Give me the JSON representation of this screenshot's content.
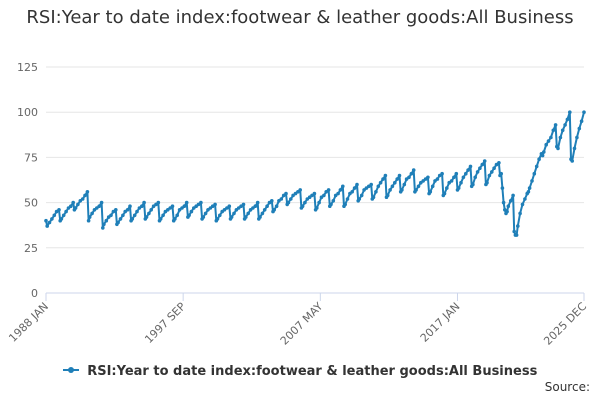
{
  "chart_data": {
    "type": "line",
    "title": "RSI:Year to date index:footwear & leather goods:All Business",
    "xlabel": "",
    "ylabel": "",
    "ylim": [
      0,
      125
    ],
    "y_ticks": [
      0,
      25,
      50,
      75,
      100,
      125
    ],
    "x_tick_labels": [
      {
        "label": "1988 JAN",
        "date": "1988-01"
      },
      {
        "label": "1997 SEP",
        "date": "1997-09"
      },
      {
        "label": "2007 MAY",
        "date": "2007-05"
      },
      {
        "label": "2017 JAN",
        "date": "2017-01"
      },
      {
        "label": "2025 DEC",
        "date": "2025-12"
      }
    ],
    "grid": true,
    "legend_position": "bottom",
    "series": [
      {
        "name": "RSI:Year to date index:footwear & leather goods:All Business",
        "color": "#1f7fb8",
        "points": [
          [
            "1988-01",
            40
          ],
          [
            "1988-02",
            37
          ],
          [
            "1988-04",
            39
          ],
          [
            "1988-06",
            41
          ],
          [
            "1988-08",
            43
          ],
          [
            "1988-10",
            45
          ],
          [
            "1988-12",
            46
          ],
          [
            "1989-01",
            40
          ],
          [
            "1989-02",
            41
          ],
          [
            "1989-04",
            43
          ],
          [
            "1989-06",
            45
          ],
          [
            "1989-08",
            47
          ],
          [
            "1989-10",
            48
          ],
          [
            "1989-12",
            50
          ],
          [
            "1990-01",
            46
          ],
          [
            "1990-02",
            47
          ],
          [
            "1990-04",
            49
          ],
          [
            "1990-06",
            51
          ],
          [
            "1990-08",
            52
          ],
          [
            "1990-10",
            54
          ],
          [
            "1990-12",
            56
          ],
          [
            "1991-01",
            40
          ],
          [
            "1991-02",
            42
          ],
          [
            "1991-04",
            44
          ],
          [
            "1991-06",
            46
          ],
          [
            "1991-08",
            47
          ],
          [
            "1991-10",
            48
          ],
          [
            "1991-12",
            50
          ],
          [
            "1992-01",
            36
          ],
          [
            "1992-02",
            38
          ],
          [
            "1992-04",
            40
          ],
          [
            "1992-06",
            42
          ],
          [
            "1992-08",
            43
          ],
          [
            "1992-10",
            45
          ],
          [
            "1992-12",
            46
          ],
          [
            "1993-01",
            38
          ],
          [
            "1993-02",
            39
          ],
          [
            "1993-04",
            41
          ],
          [
            "1993-06",
            43
          ],
          [
            "1993-08",
            45
          ],
          [
            "1993-10",
            46
          ],
          [
            "1993-12",
            48
          ],
          [
            "1994-01",
            40
          ],
          [
            "1994-02",
            41
          ],
          [
            "1994-04",
            43
          ],
          [
            "1994-06",
            45
          ],
          [
            "1994-08",
            47
          ],
          [
            "1994-10",
            48
          ],
          [
            "1994-12",
            50
          ],
          [
            "1995-01",
            41
          ],
          [
            "1995-02",
            42
          ],
          [
            "1995-04",
            44
          ],
          [
            "1995-06",
            46
          ],
          [
            "1995-08",
            48
          ],
          [
            "1995-10",
            49
          ],
          [
            "1995-12",
            50
          ],
          [
            "1996-01",
            40
          ],
          [
            "1996-02",
            41
          ],
          [
            "1996-04",
            43
          ],
          [
            "1996-06",
            45
          ],
          [
            "1996-08",
            46
          ],
          [
            "1996-10",
            47
          ],
          [
            "1996-12",
            48
          ],
          [
            "1997-01",
            40
          ],
          [
            "1997-02",
            41
          ],
          [
            "1997-04",
            43
          ],
          [
            "1997-06",
            46
          ],
          [
            "1997-08",
            47
          ],
          [
            "1997-10",
            48
          ],
          [
            "1997-12",
            50
          ],
          [
            "1998-01",
            42
          ],
          [
            "1998-02",
            43
          ],
          [
            "1998-04",
            45
          ],
          [
            "1998-06",
            47
          ],
          [
            "1998-08",
            48
          ],
          [
            "1998-10",
            49
          ],
          [
            "1998-12",
            50
          ],
          [
            "1999-01",
            41
          ],
          [
            "1999-02",
            42
          ],
          [
            "1999-04",
            44
          ],
          [
            "1999-06",
            46
          ],
          [
            "1999-08",
            47
          ],
          [
            "1999-10",
            48
          ],
          [
            "1999-12",
            49
          ],
          [
            "2000-01",
            40
          ],
          [
            "2000-02",
            41
          ],
          [
            "2000-04",
            43
          ],
          [
            "2000-06",
            45
          ],
          [
            "2000-08",
            46
          ],
          [
            "2000-10",
            47
          ],
          [
            "2000-12",
            48
          ],
          [
            "2001-01",
            41
          ],
          [
            "2001-02",
            42
          ],
          [
            "2001-04",
            44
          ],
          [
            "2001-06",
            46
          ],
          [
            "2001-08",
            47
          ],
          [
            "2001-10",
            48
          ],
          [
            "2001-12",
            49
          ],
          [
            "2002-01",
            41
          ],
          [
            "2002-02",
            42
          ],
          [
            "2002-04",
            44
          ],
          [
            "2002-06",
            46
          ],
          [
            "2002-08",
            47
          ],
          [
            "2002-10",
            48
          ],
          [
            "2002-12",
            50
          ],
          [
            "2003-01",
            41
          ],
          [
            "2003-02",
            42
          ],
          [
            "2003-04",
            44
          ],
          [
            "2003-06",
            46
          ],
          [
            "2003-08",
            48
          ],
          [
            "2003-10",
            50
          ],
          [
            "2003-12",
            51
          ],
          [
            "2004-01",
            45
          ],
          [
            "2004-02",
            46
          ],
          [
            "2004-04",
            48
          ],
          [
            "2004-06",
            51
          ],
          [
            "2004-08",
            52
          ],
          [
            "2004-10",
            54
          ],
          [
            "2004-12",
            55
          ],
          [
            "2005-01",
            49
          ],
          [
            "2005-02",
            50
          ],
          [
            "2005-04",
            52
          ],
          [
            "2005-06",
            54
          ],
          [
            "2005-08",
            55
          ],
          [
            "2005-10",
            56
          ],
          [
            "2005-12",
            57
          ],
          [
            "2006-01",
            47
          ],
          [
            "2006-02",
            48
          ],
          [
            "2006-04",
            50
          ],
          [
            "2006-06",
            52
          ],
          [
            "2006-08",
            53
          ],
          [
            "2006-10",
            54
          ],
          [
            "2006-12",
            55
          ],
          [
            "2007-01",
            46
          ],
          [
            "2007-02",
            47
          ],
          [
            "2007-04",
            50
          ],
          [
            "2007-06",
            53
          ],
          [
            "2007-08",
            54
          ],
          [
            "2007-10",
            56
          ],
          [
            "2007-12",
            57
          ],
          [
            "2008-01",
            48
          ],
          [
            "2008-02",
            49
          ],
          [
            "2008-04",
            51
          ],
          [
            "2008-06",
            54
          ],
          [
            "2008-08",
            55
          ],
          [
            "2008-10",
            57
          ],
          [
            "2008-12",
            59
          ],
          [
            "2009-01",
            48
          ],
          [
            "2009-02",
            49
          ],
          [
            "2009-04",
            52
          ],
          [
            "2009-06",
            55
          ],
          [
            "2009-08",
            56
          ],
          [
            "2009-10",
            58
          ],
          [
            "2009-12",
            60
          ],
          [
            "2010-01",
            51
          ],
          [
            "2010-02",
            52
          ],
          [
            "2010-04",
            54
          ],
          [
            "2010-06",
            57
          ],
          [
            "2010-08",
            58
          ],
          [
            "2010-10",
            59
          ],
          [
            "2010-12",
            60
          ],
          [
            "2011-01",
            52
          ],
          [
            "2011-02",
            53
          ],
          [
            "2011-04",
            56
          ],
          [
            "2011-06",
            59
          ],
          [
            "2011-08",
            61
          ],
          [
            "2011-10",
            63
          ],
          [
            "2011-12",
            65
          ],
          [
            "2012-01",
            53
          ],
          [
            "2012-02",
            54
          ],
          [
            "2012-04",
            57
          ],
          [
            "2012-06",
            59
          ],
          [
            "2012-08",
            61
          ],
          [
            "2012-10",
            63
          ],
          [
            "2012-12",
            65
          ],
          [
            "2013-01",
            56
          ],
          [
            "2013-02",
            57
          ],
          [
            "2013-04",
            60
          ],
          [
            "2013-06",
            63
          ],
          [
            "2013-08",
            64
          ],
          [
            "2013-10",
            66
          ],
          [
            "2013-12",
            68
          ],
          [
            "2014-01",
            56
          ],
          [
            "2014-02",
            57
          ],
          [
            "2014-04",
            59
          ],
          [
            "2014-06",
            61
          ],
          [
            "2014-08",
            62
          ],
          [
            "2014-10",
            63
          ],
          [
            "2014-12",
            64
          ],
          [
            "2015-01",
            55
          ],
          [
            "2015-02",
            56
          ],
          [
            "2015-04",
            59
          ],
          [
            "2015-06",
            62
          ],
          [
            "2015-08",
            63
          ],
          [
            "2015-10",
            65
          ],
          [
            "2015-12",
            66
          ],
          [
            "2016-01",
            54
          ],
          [
            "2016-02",
            55
          ],
          [
            "2016-04",
            58
          ],
          [
            "2016-06",
            61
          ],
          [
            "2016-08",
            62
          ],
          [
            "2016-10",
            64
          ],
          [
            "2016-12",
            66
          ],
          [
            "2017-01",
            57
          ],
          [
            "2017-02",
            58
          ],
          [
            "2017-04",
            61
          ],
          [
            "2017-06",
            64
          ],
          [
            "2017-08",
            66
          ],
          [
            "2017-10",
            68
          ],
          [
            "2017-12",
            70
          ],
          [
            "2018-01",
            59
          ],
          [
            "2018-02",
            60
          ],
          [
            "2018-04",
            64
          ],
          [
            "2018-06",
            67
          ],
          [
            "2018-08",
            69
          ],
          [
            "2018-10",
            71
          ],
          [
            "2018-12",
            73
          ],
          [
            "2019-01",
            60
          ],
          [
            "2019-02",
            61
          ],
          [
            "2019-04",
            65
          ],
          [
            "2019-06",
            67
          ],
          [
            "2019-08",
            69
          ],
          [
            "2019-10",
            71
          ],
          [
            "2019-12",
            72
          ],
          [
            "2020-01",
            65
          ],
          [
            "2020-02",
            66
          ],
          [
            "2020-03",
            58
          ],
          [
            "2020-04",
            50
          ],
          [
            "2020-05",
            46
          ],
          [
            "2020-06",
            44
          ],
          [
            "2020-07",
            45
          ],
          [
            "2020-08",
            48
          ],
          [
            "2020-10",
            51
          ],
          [
            "2020-12",
            54
          ],
          [
            "2021-01",
            34
          ],
          [
            "2021-02",
            32
          ],
          [
            "2021-03",
            32
          ],
          [
            "2021-04",
            37
          ],
          [
            "2021-06",
            44
          ],
          [
            "2021-08",
            49
          ],
          [
            "2021-10",
            52
          ],
          [
            "2021-12",
            55
          ],
          [
            "2022-01",
            56
          ],
          [
            "2022-02",
            58
          ],
          [
            "2022-04",
            62
          ],
          [
            "2022-06",
            66
          ],
          [
            "2022-08",
            70
          ],
          [
            "2022-10",
            74
          ],
          [
            "2022-12",
            77
          ],
          [
            "2023-01",
            76
          ],
          [
            "2023-02",
            78
          ],
          [
            "2023-04",
            82
          ],
          [
            "2023-06",
            84
          ],
          [
            "2023-08",
            86
          ],
          [
            "2023-10",
            90
          ],
          [
            "2023-12",
            93
          ],
          [
            "2024-01",
            81
          ],
          [
            "2024-02",
            80
          ],
          [
            "2024-04",
            86
          ],
          [
            "2024-06",
            90
          ],
          [
            "2024-08",
            93
          ],
          [
            "2024-10",
            96
          ],
          [
            "2024-12",
            100
          ],
          [
            "2025-01",
            74
          ],
          [
            "2025-02",
            73
          ],
          [
            "2025-04",
            80
          ],
          [
            "2025-06",
            86
          ],
          [
            "2025-08",
            91
          ],
          [
            "2025-10",
            95
          ],
          [
            "2025-12",
            100
          ]
        ]
      }
    ]
  },
  "legend": {
    "label": "RSI:Year to date index:footwear & leather goods:All Business"
  },
  "source": {
    "label": "Source:"
  }
}
